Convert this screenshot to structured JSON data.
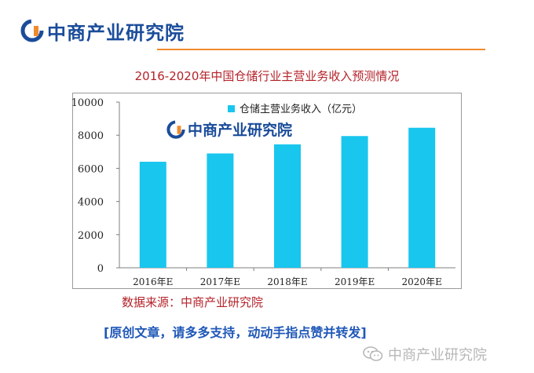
{
  "header": {
    "brand": "中商产业研究院"
  },
  "watermark": {
    "brand": "中商产业研究院"
  },
  "footer": {
    "source": "数据来源：中商产业研究院",
    "slogan": "[原创文章，请多多支持，动动手指点赞并转发]",
    "brand": "中商产业研究院"
  },
  "colors": {
    "bar": "#19c6ee",
    "title": "#b4232a",
    "brand": "#1a4c9a",
    "accent": "#f08a2c"
  },
  "chart_data": {
    "type": "bar",
    "title": "2016-2020年中国仓储行业主营业务收入预测情况",
    "categories": [
      "2016年E",
      "2017年E",
      "2018年E",
      "2019年E",
      "2020年E"
    ],
    "series": [
      {
        "name": "仓储主营业务收入（亿元）",
        "values": [
          6400,
          6900,
          7450,
          7950,
          8450
        ]
      }
    ],
    "ylim": [
      0,
      10000
    ],
    "yticks": [
      0,
      2000,
      4000,
      6000,
      8000,
      10000
    ],
    "grid": false,
    "legend": "top-left"
  }
}
